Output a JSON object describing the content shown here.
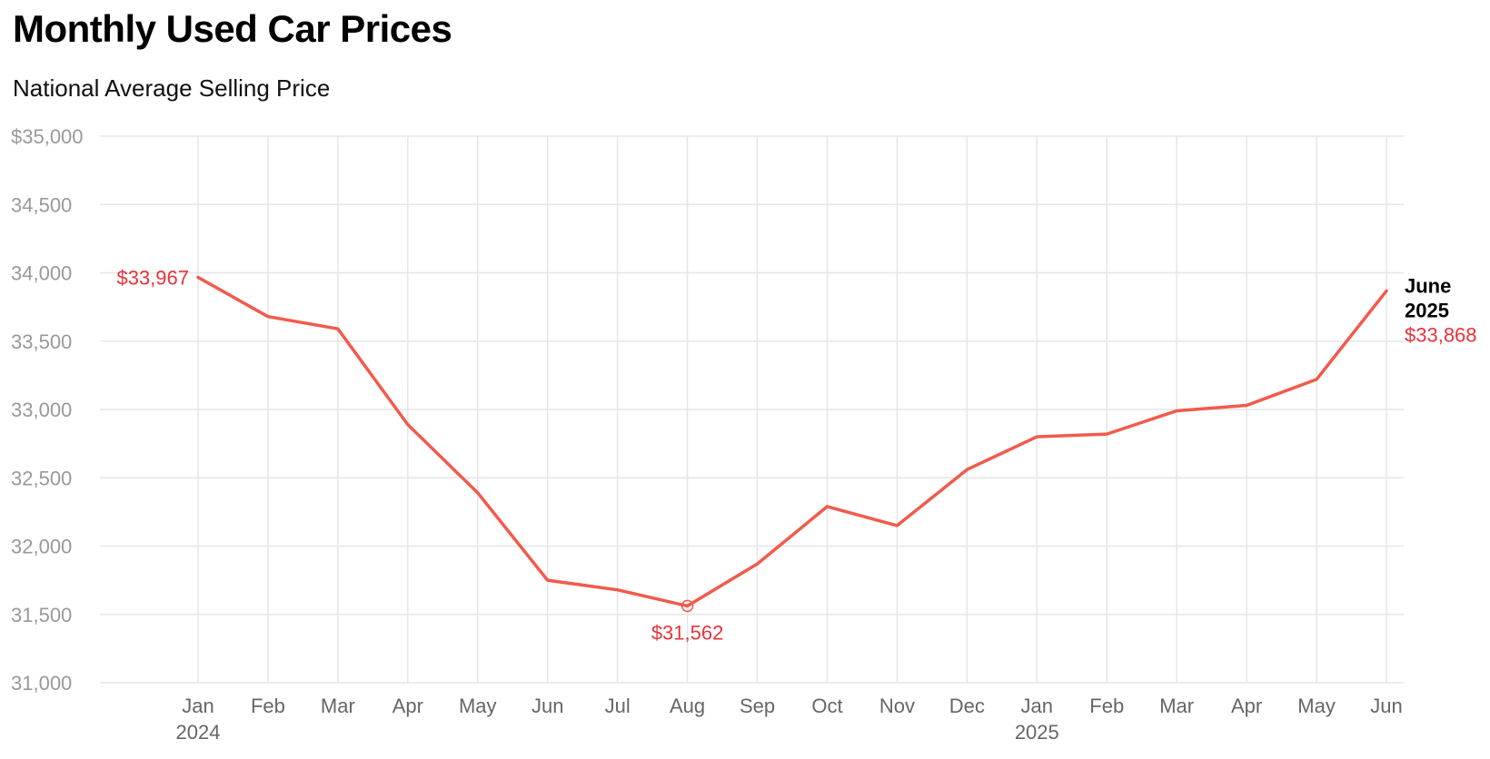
{
  "chart_data": {
    "type": "line",
    "title": "Monthly Used Car Prices",
    "subtitle": "National Average Selling Price",
    "xlabel": "",
    "ylabel": "",
    "categories": [
      "Jan",
      "Feb",
      "Mar",
      "Apr",
      "May",
      "Jun",
      "Jul",
      "Aug",
      "Sep",
      "Oct",
      "Nov",
      "Dec",
      "Jan",
      "Feb",
      "Mar",
      "Apr",
      "May",
      "Jun"
    ],
    "year_labels": [
      {
        "index": 0,
        "label": "2024"
      },
      {
        "index": 12,
        "label": "2025"
      }
    ],
    "series": [
      {
        "values": [
          33967,
          33680,
          33590,
          32890,
          32390,
          31750,
          31680,
          31562,
          31870,
          32290,
          32150,
          32560,
          32800,
          32820,
          32990,
          33030,
          33220,
          33868
        ],
        "color": "#f25a4c"
      }
    ],
    "ylim": [
      31000,
      35000
    ],
    "y_ticks": [
      {
        "value": 35000,
        "label": "$35,000"
      },
      {
        "value": 34500,
        "label": "34,500"
      },
      {
        "value": 34000,
        "label": "34,000"
      },
      {
        "value": 33500,
        "label": "33,500"
      },
      {
        "value": 33000,
        "label": "33,000"
      },
      {
        "value": 32500,
        "label": "32,500"
      },
      {
        "value": 32000,
        "label": "32,000"
      },
      {
        "value": 31500,
        "label": "31,500"
      },
      {
        "value": 31000,
        "label": "31,000"
      }
    ],
    "grid": true,
    "annotations": [
      {
        "index": 0,
        "label": "$33,967",
        "placement": "left"
      },
      {
        "index": 7,
        "label": "$31,562",
        "placement": "below",
        "marker": true
      }
    ],
    "end_label": {
      "index": 17,
      "title_lines": [
        "June",
        "2025"
      ],
      "value_label": "$33,868"
    },
    "annotation_color": "#e8333a"
  }
}
